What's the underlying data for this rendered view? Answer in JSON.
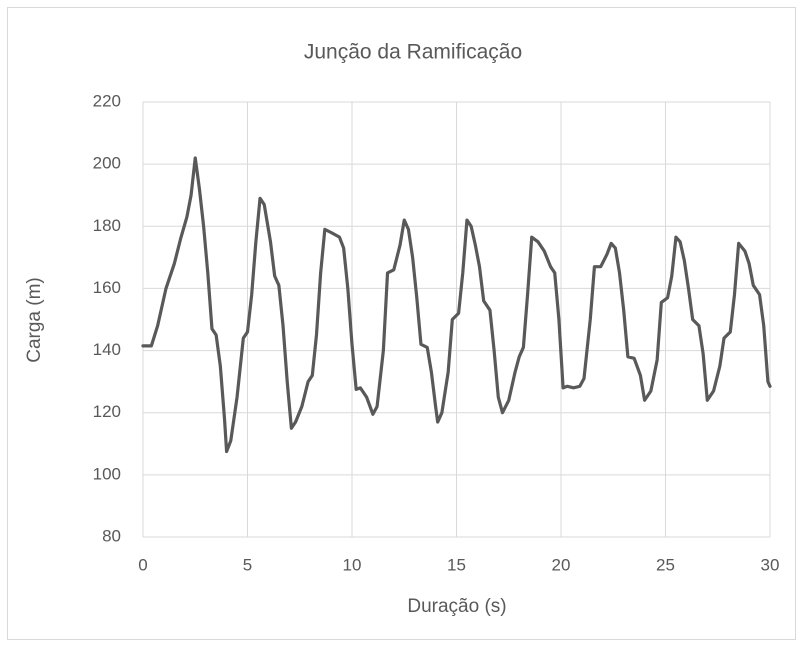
{
  "chart_data": {
    "type": "line",
    "title": "Junção da Ramificação",
    "x_label": "Duração (s)",
    "y_label": "Carga (m)",
    "xlim": [
      0,
      30
    ],
    "xticks": [
      0,
      5,
      10,
      15,
      20,
      25,
      30
    ],
    "ylim": [
      80,
      220
    ],
    "yticks": [
      80,
      100,
      120,
      140,
      160,
      180,
      200,
      220
    ],
    "grid": true,
    "x": [
      0,
      0.4,
      0.7,
      1.1,
      1.5,
      1.8,
      2.1,
      2.3,
      2.5,
      2.7,
      2.9,
      3.1,
      3.3,
      3.5,
      3.7,
      3.9,
      4.0,
      4.2,
      4.5,
      4.8,
      5.0,
      5.2,
      5.4,
      5.6,
      5.8,
      6.1,
      6.3,
      6.5,
      6.7,
      6.9,
      7.1,
      7.3,
      7.6,
      7.9,
      8.1,
      8.3,
      8.5,
      8.7,
      9.0,
      9.4,
      9.6,
      9.8,
      10.0,
      10.2,
      10.4,
      10.7,
      11.0,
      11.2,
      11.5,
      11.7,
      12.0,
      12.3,
      12.5,
      12.7,
      12.9,
      13.1,
      13.3,
      13.6,
      13.8,
      14.0,
      14.1,
      14.3,
      14.6,
      14.8,
      15.1,
      15.3,
      15.5,
      15.7,
      15.9,
      16.1,
      16.3,
      16.6,
      16.8,
      17.0,
      17.2,
      17.5,
      17.8,
      18.0,
      18.2,
      18.4,
      18.6,
      18.9,
      19.2,
      19.5,
      19.7,
      19.9,
      20.1,
      20.3,
      20.6,
      20.9,
      21.1,
      21.4,
      21.6,
      21.9,
      22.2,
      22.4,
      22.6,
      22.8,
      23.0,
      23.2,
      23.5,
      23.8,
      24.0,
      24.3,
      24.6,
      24.8,
      25.1,
      25.3,
      25.5,
      25.7,
      25.9,
      26.1,
      26.3,
      26.6,
      26.8,
      27.0,
      27.3,
      27.6,
      27.8,
      28.1,
      28.3,
      28.5,
      28.8,
      29.0,
      29.2,
      29.5,
      29.7,
      29.9,
      30.0
    ],
    "series": [
      {
        "name": "Carga",
        "color": "#595959",
        "values": [
          141.5,
          141.5,
          148,
          160,
          168,
          176,
          183,
          190,
          202,
          192,
          180,
          165,
          147,
          145,
          135,
          118,
          107.5,
          111,
          125,
          144,
          146,
          158,
          175,
          189,
          187,
          175,
          164,
          161,
          148,
          130,
          115,
          117,
          122,
          130,
          132,
          145,
          165,
          179,
          178,
          176.5,
          173,
          160,
          142,
          127.5,
          128,
          125,
          119.5,
          122,
          140,
          165,
          166,
          174,
          182,
          179,
          170,
          157,
          142,
          141,
          133,
          122,
          117,
          120,
          133,
          150,
          152,
          165,
          182,
          180,
          174,
          167,
          156,
          153,
          140,
          125,
          120,
          124,
          133,
          138,
          141,
          158,
          176.5,
          175,
          172,
          167,
          165,
          150,
          128,
          128.5,
          128,
          128.5,
          131,
          150,
          167,
          167,
          171,
          174.5,
          173,
          165,
          153,
          138,
          137.5,
          132,
          124,
          127,
          137,
          155.5,
          157,
          164,
          176.5,
          175,
          169,
          160,
          150,
          148,
          139,
          124,
          127,
          135,
          144,
          146,
          158,
          174.5,
          172,
          168,
          161,
          158,
          148,
          130,
          128.5
        ]
      }
    ]
  }
}
